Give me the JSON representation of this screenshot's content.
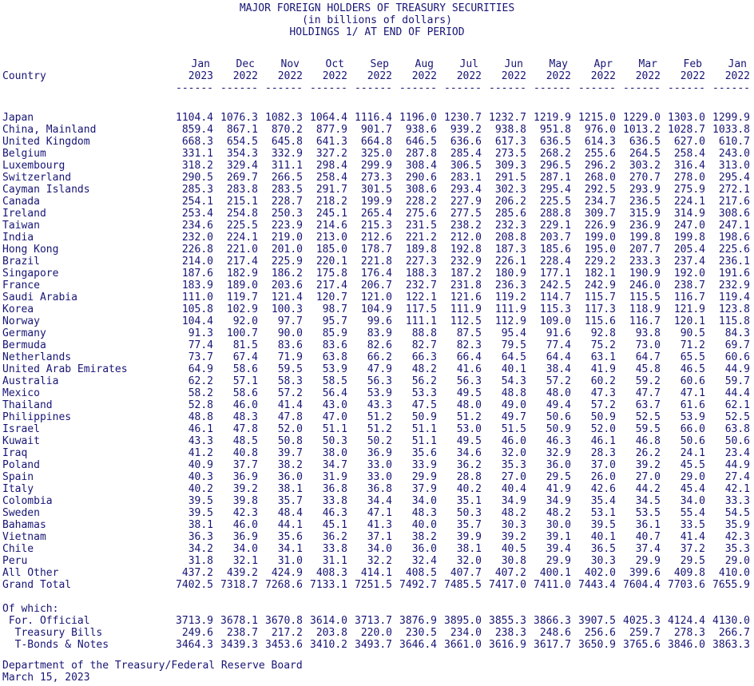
{
  "colors": {
    "text": "#171575",
    "background": "#ffffff"
  },
  "report": {
    "title_lines": [
      "MAJOR FOREIGN HOLDERS OF TREASURY SECURITIES",
      "(in billions of dollars)",
      "HOLDINGS 1/ AT END OF PERIOD"
    ],
    "table": {
      "country_header": "Country",
      "months": [
        "Jan",
        "Dec",
        "Nov",
        "Oct",
        "Sep",
        "Aug",
        "Jul",
        "Jun",
        "May",
        "Apr",
        "Mar",
        "Feb",
        "Jan"
      ],
      "years": [
        "2023",
        "2022",
        "2022",
        "2022",
        "2022",
        "2022",
        "2022",
        "2022",
        "2022",
        "2022",
        "2022",
        "2022",
        "2022"
      ],
      "separator": "------",
      "rows": [
        {
          "label": "Japan",
          "values": [
            "1104.4",
            "1076.3",
            "1082.3",
            "1064.4",
            "1116.4",
            "1196.0",
            "1230.7",
            "1232.7",
            "1219.9",
            "1215.0",
            "1229.0",
            "1303.0",
            "1299.9"
          ]
        },
        {
          "label": "China, Mainland",
          "values": [
            "859.4",
            "867.1",
            "870.2",
            "877.9",
            "901.7",
            "938.6",
            "939.2",
            "938.8",
            "951.8",
            "976.0",
            "1013.2",
            "1028.7",
            "1033.8"
          ]
        },
        {
          "label": "United Kingdom",
          "values": [
            "668.3",
            "654.5",
            "645.8",
            "641.3",
            "664.8",
            "646.5",
            "636.6",
            "617.3",
            "636.5",
            "614.3",
            "636.5",
            "627.0",
            "610.7"
          ]
        },
        {
          "label": "Belgium",
          "values": [
            "331.1",
            "354.3",
            "332.9",
            "327.2",
            "325.0",
            "287.8",
            "285.4",
            "273.5",
            "268.2",
            "255.6",
            "264.5",
            "258.4",
            "243.0"
          ]
        },
        {
          "label": "Luxembourg",
          "values": [
            "318.2",
            "329.4",
            "311.1",
            "298.4",
            "299.9",
            "308.4",
            "306.5",
            "309.3",
            "296.5",
            "296.2",
            "303.2",
            "316.4",
            "313.0"
          ]
        },
        {
          "label": "Switzerland",
          "values": [
            "290.5",
            "269.7",
            "266.5",
            "258.4",
            "273.3",
            "290.6",
            "283.1",
            "291.5",
            "287.1",
            "268.0",
            "270.7",
            "278.0",
            "295.4"
          ]
        },
        {
          "label": "Cayman Islands",
          "values": [
            "285.3",
            "283.8",
            "283.5",
            "291.7",
            "301.5",
            "308.6",
            "293.4",
            "302.3",
            "295.4",
            "292.5",
            "293.9",
            "275.9",
            "272.1"
          ]
        },
        {
          "label": "Canada",
          "values": [
            "254.1",
            "215.1",
            "228.7",
            "218.2",
            "199.9",
            "228.2",
            "227.9",
            "206.2",
            "225.5",
            "234.7",
            "236.5",
            "224.1",
            "217.6"
          ]
        },
        {
          "label": "Ireland",
          "values": [
            "253.4",
            "254.8",
            "250.3",
            "245.1",
            "265.4",
            "275.6",
            "277.5",
            "285.6",
            "288.8",
            "309.7",
            "315.9",
            "314.9",
            "308.6"
          ]
        },
        {
          "label": "Taiwan",
          "values": [
            "234.6",
            "225.5",
            "223.9",
            "214.6",
            "215.3",
            "231.5",
            "238.2",
            "232.3",
            "229.1",
            "226.9",
            "236.9",
            "247.0",
            "247.1"
          ]
        },
        {
          "label": "India",
          "values": [
            "232.0",
            "224.1",
            "219.0",
            "213.0",
            "212.6",
            "221.2",
            "212.0",
            "208.8",
            "203.7",
            "199.0",
            "199.8",
            "199.8",
            "198.6"
          ]
        },
        {
          "label": "Hong Kong",
          "values": [
            "226.8",
            "221.0",
            "201.0",
            "185.0",
            "178.7",
            "189.8",
            "192.8",
            "187.3",
            "185.6",
            "195.0",
            "207.7",
            "205.4",
            "225.6"
          ]
        },
        {
          "label": "Brazil",
          "values": [
            "214.0",
            "217.4",
            "225.9",
            "220.1",
            "221.8",
            "227.3",
            "232.9",
            "226.1",
            "228.4",
            "229.2",
            "233.3",
            "237.4",
            "236.1"
          ]
        },
        {
          "label": "Singapore",
          "values": [
            "187.6",
            "182.9",
            "186.2",
            "175.8",
            "176.4",
            "188.3",
            "187.2",
            "180.9",
            "177.1",
            "182.1",
            "190.9",
            "192.0",
            "191.6"
          ]
        },
        {
          "label": "France",
          "values": [
            "183.9",
            "189.0",
            "203.6",
            "217.4",
            "206.7",
            "232.7",
            "231.8",
            "236.3",
            "242.5",
            "242.9",
            "246.0",
            "238.7",
            "232.9"
          ]
        },
        {
          "label": "Saudi Arabia",
          "values": [
            "111.0",
            "119.7",
            "121.4",
            "120.7",
            "121.0",
            "122.1",
            "121.6",
            "119.2",
            "114.7",
            "115.7",
            "115.5",
            "116.7",
            "119.4"
          ]
        },
        {
          "label": "Korea",
          "values": [
            "105.8",
            "102.9",
            "100.3",
            "98.7",
            "104.9",
            "117.5",
            "111.9",
            "111.9",
            "115.3",
            "117.3",
            "118.9",
            "121.9",
            "123.8"
          ]
        },
        {
          "label": "Norway",
          "values": [
            "104.4",
            "92.0",
            "97.7",
            "95.7",
            "99.6",
            "111.1",
            "112.5",
            "112.9",
            "109.0",
            "115.6",
            "116.7",
            "120.1",
            "115.8"
          ]
        },
        {
          "label": "Germany",
          "values": [
            "91.3",
            "100.7",
            "90.0",
            "85.9",
            "83.9",
            "88.8",
            "87.5",
            "95.4",
            "91.6",
            "92.8",
            "93.8",
            "90.5",
            "84.3"
          ]
        },
        {
          "label": "Bermuda",
          "values": [
            "77.4",
            "81.5",
            "83.6",
            "83.6",
            "82.6",
            "82.7",
            "82.3",
            "79.5",
            "77.4",
            "75.2",
            "73.0",
            "71.2",
            "69.7"
          ]
        },
        {
          "label": "Netherlands",
          "values": [
            "73.7",
            "67.4",
            "71.9",
            "63.8",
            "66.2",
            "66.3",
            "66.4",
            "64.5",
            "64.4",
            "63.1",
            "64.7",
            "65.5",
            "60.6"
          ]
        },
        {
          "label": "United Arab Emirates",
          "values": [
            "64.9",
            "58.6",
            "59.5",
            "53.9",
            "47.9",
            "48.2",
            "41.6",
            "40.1",
            "38.4",
            "41.9",
            "45.8",
            "46.5",
            "44.9"
          ]
        },
        {
          "label": "Australia",
          "values": [
            "62.2",
            "57.1",
            "58.3",
            "58.5",
            "56.3",
            "56.2",
            "56.3",
            "54.3",
            "57.2",
            "60.2",
            "59.2",
            "60.6",
            "59.7"
          ]
        },
        {
          "label": "Mexico",
          "values": [
            "58.2",
            "58.6",
            "57.2",
            "56.4",
            "53.9",
            "53.3",
            "49.5",
            "48.8",
            "48.0",
            "47.3",
            "47.7",
            "47.1",
            "44.4"
          ]
        },
        {
          "label": "Thailand",
          "values": [
            "52.8",
            "46.0",
            "41.4",
            "43.0",
            "43.3",
            "47.5",
            "48.0",
            "49.0",
            "49.4",
            "57.2",
            "63.7",
            "61.6",
            "62.1"
          ]
        },
        {
          "label": "Philippines",
          "values": [
            "48.8",
            "48.3",
            "47.8",
            "47.0",
            "51.2",
            "50.9",
            "51.2",
            "49.7",
            "50.6",
            "50.9",
            "52.5",
            "53.9",
            "52.5"
          ]
        },
        {
          "label": "Israel",
          "values": [
            "46.1",
            "47.8",
            "52.0",
            "51.1",
            "51.2",
            "51.1",
            "53.0",
            "51.5",
            "50.9",
            "52.0",
            "59.5",
            "66.0",
            "63.8"
          ]
        },
        {
          "label": "Kuwait",
          "values": [
            "43.3",
            "48.5",
            "50.8",
            "50.3",
            "50.2",
            "51.1",
            "49.5",
            "46.0",
            "46.3",
            "46.1",
            "46.8",
            "50.6",
            "50.6"
          ]
        },
        {
          "label": "Iraq",
          "values": [
            "41.2",
            "40.8",
            "39.7",
            "38.0",
            "36.9",
            "35.6",
            "34.6",
            "32.0",
            "32.9",
            "28.3",
            "26.2",
            "24.1",
            "23.4"
          ]
        },
        {
          "label": "Poland",
          "values": [
            "40.9",
            "37.7",
            "38.2",
            "34.7",
            "33.0",
            "33.9",
            "36.2",
            "35.3",
            "36.0",
            "37.0",
            "39.2",
            "45.5",
            "44.9"
          ]
        },
        {
          "label": "Spain",
          "values": [
            "40.3",
            "36.9",
            "36.0",
            "31.9",
            "33.0",
            "29.9",
            "28.8",
            "27.0",
            "29.5",
            "26.0",
            "27.0",
            "29.0",
            "27.4"
          ]
        },
        {
          "label": "Italy",
          "values": [
            "40.2",
            "39.2",
            "38.1",
            "36.8",
            "36.8",
            "37.9",
            "40.2",
            "40.4",
            "41.9",
            "42.6",
            "44.2",
            "45.4",
            "42.1"
          ]
        },
        {
          "label": "Colombia",
          "values": [
            "39.5",
            "39.8",
            "35.7",
            "33.8",
            "34.4",
            "34.0",
            "35.1",
            "34.9",
            "34.9",
            "35.4",
            "34.5",
            "34.0",
            "33.3"
          ]
        },
        {
          "label": "Sweden",
          "values": [
            "39.5",
            "42.3",
            "48.4",
            "46.3",
            "47.1",
            "48.3",
            "50.3",
            "48.2",
            "48.2",
            "53.1",
            "53.5",
            "55.4",
            "54.5"
          ]
        },
        {
          "label": "Bahamas",
          "values": [
            "38.1",
            "46.0",
            "44.1",
            "45.1",
            "41.3",
            "40.0",
            "35.7",
            "30.3",
            "30.0",
            "39.5",
            "36.1",
            "33.5",
            "35.9"
          ]
        },
        {
          "label": "Vietnam",
          "values": [
            "36.3",
            "36.9",
            "35.6",
            "36.2",
            "37.1",
            "38.2",
            "39.9",
            "39.2",
            "39.1",
            "40.1",
            "40.7",
            "41.4",
            "42.3"
          ]
        },
        {
          "label": "Chile",
          "values": [
            "34.2",
            "34.0",
            "34.1",
            "33.8",
            "34.0",
            "36.0",
            "38.1",
            "40.5",
            "39.4",
            "36.5",
            "37.4",
            "37.2",
            "35.3"
          ]
        },
        {
          "label": "Peru",
          "values": [
            "31.8",
            "32.1",
            "31.0",
            "31.1",
            "32.2",
            "32.4",
            "32.0",
            "30.8",
            "29.9",
            "30.3",
            "29.9",
            "29.5",
            "29.0"
          ]
        },
        {
          "label": "All Other",
          "values": [
            "437.2",
            "439.2",
            "424.9",
            "408.3",
            "414.1",
            "408.5",
            "407.7",
            "407.2",
            "400.1",
            "402.0",
            "399.6",
            "409.8",
            "410.0"
          ]
        },
        {
          "label": "Grand Total",
          "values": [
            "7402.5",
            "7318.7",
            "7268.6",
            "7133.1",
            "7251.5",
            "7492.7",
            "7485.5",
            "7417.0",
            "7411.0",
            "7443.4",
            "7604.4",
            "7703.6",
            "7655.9"
          ]
        }
      ],
      "of_which_label": "Of which:",
      "of_which_rows": [
        {
          "label": " For. Official",
          "values": [
            "3713.9",
            "3678.1",
            "3670.8",
            "3614.0",
            "3713.7",
            "3876.9",
            "3895.0",
            "3855.3",
            "3866.3",
            "3907.5",
            "4025.3",
            "4124.4",
            "4130.0"
          ]
        },
        {
          "label": "  Treasury Bills",
          "values": [
            "249.6",
            "238.7",
            "217.2",
            "203.8",
            "220.0",
            "230.5",
            "234.0",
            "238.3",
            "248.6",
            "256.6",
            "259.7",
            "278.3",
            "266.7"
          ]
        },
        {
          "label": "  T-Bonds & Notes",
          "values": [
            "3464.3",
            "3439.3",
            "3453.6",
            "3410.2",
            "3493.7",
            "3646.4",
            "3661.0",
            "3616.9",
            "3617.7",
            "3650.9",
            "3765.6",
            "3846.0",
            "3863.3"
          ]
        }
      ]
    },
    "footer_lines": [
      "Department of the Treasury/Federal Reserve Board",
      "March 15, 2023"
    ]
  }
}
